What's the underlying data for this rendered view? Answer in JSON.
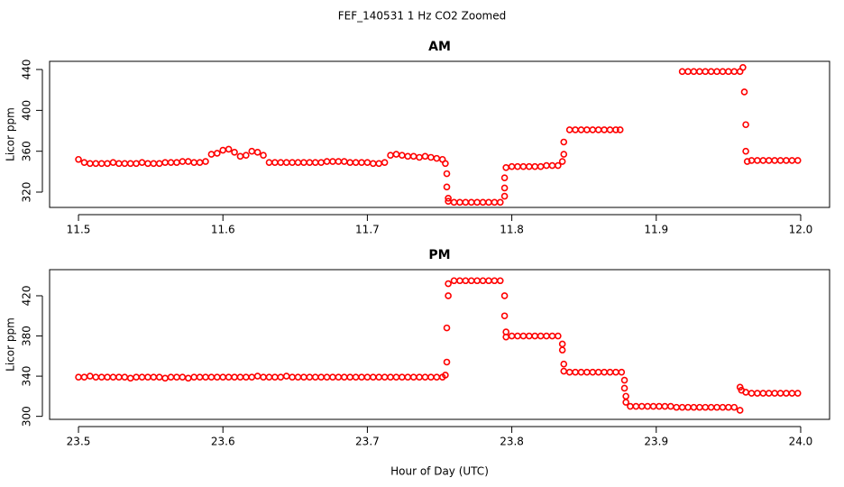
{
  "title": "FEF_140531  1 Hz CO2 Zoomed",
  "chart_data": [
    {
      "type": "scatter",
      "title": "AM",
      "ylabel": "Licor ppm",
      "color": "#ff0000",
      "xlim": [
        11.48,
        12.02
      ],
      "ylim": [
        305,
        448
      ],
      "xticks": [
        11.5,
        11.6,
        11.7,
        11.8,
        11.9,
        {
          "value": 12,
          "label": "12.0"
        }
      ],
      "yticks": [
        320,
        360,
        400,
        440
      ],
      "x": [
        11.5,
        11.504,
        11.508,
        11.512,
        11.516,
        11.52,
        11.524,
        11.528,
        11.532,
        11.536,
        11.54,
        11.544,
        11.548,
        11.552,
        11.556,
        11.56,
        11.564,
        11.568,
        11.572,
        11.576,
        11.58,
        11.584,
        11.588,
        11.592,
        11.596,
        11.6,
        11.604,
        11.608,
        11.612,
        11.616,
        11.62,
        11.624,
        11.628,
        11.632,
        11.636,
        11.64,
        11.644,
        11.648,
        11.652,
        11.656,
        11.66,
        11.664,
        11.668,
        11.672,
        11.676,
        11.68,
        11.684,
        11.688,
        11.692,
        11.696,
        11.7,
        11.704,
        11.708,
        11.712,
        11.716,
        11.72,
        11.724,
        11.728,
        11.732,
        11.736,
        11.74,
        11.744,
        11.748,
        11.752,
        11.754,
        11.755,
        11.755,
        11.756,
        11.756,
        11.76,
        11.764,
        11.768,
        11.772,
        11.776,
        11.78,
        11.784,
        11.788,
        11.792,
        11.795,
        11.795,
        11.795,
        11.796,
        11.8,
        11.804,
        11.808,
        11.812,
        11.816,
        11.82,
        11.824,
        11.828,
        11.832,
        11.835,
        11.836,
        11.836,
        11.84,
        11.844,
        11.848,
        11.852,
        11.856,
        11.86,
        11.864,
        11.868,
        11.872,
        11.875,
        11.918,
        11.922,
        11.926,
        11.93,
        11.934,
        11.938,
        11.942,
        11.946,
        11.95,
        11.954,
        11.958,
        11.96,
        11.961,
        11.962,
        11.962,
        11.963,
        11.966,
        11.97,
        11.974,
        11.978,
        11.982,
        11.986,
        11.99,
        11.994,
        11.998
      ],
      "values": [
        352,
        349,
        348,
        348,
        348,
        348,
        349,
        348,
        348,
        348,
        348,
        349,
        348,
        348,
        348,
        349,
        349,
        349,
        350,
        350,
        349,
        349,
        350,
        357,
        358,
        361,
        362,
        359,
        355,
        356,
        360,
        359,
        356,
        349,
        349,
        349,
        349,
        349,
        349,
        349,
        349,
        349,
        349,
        350,
        350,
        350,
        350,
        349,
        349,
        349,
        349,
        348,
        348,
        349,
        356,
        357,
        356,
        355,
        355,
        354,
        355,
        354,
        353,
        352,
        348,
        338,
        325,
        314,
        311,
        310,
        310,
        310,
        310,
        310,
        310,
        310,
        310,
        310,
        316,
        324,
        334,
        344,
        345,
        345,
        345,
        345,
        345,
        345,
        346,
        346,
        346,
        350,
        357,
        369,
        381,
        381,
        381,
        381,
        381,
        381,
        381,
        381,
        381,
        381,
        438,
        438,
        438,
        438,
        438,
        438,
        438,
        438,
        438,
        438,
        438,
        442,
        418,
        386,
        360,
        350,
        351,
        351,
        351,
        351,
        351,
        351,
        351,
        351,
        351
      ]
    },
    {
      "type": "scatter",
      "title": "PM",
      "ylabel": "Licor ppm",
      "xlabel": "Hour of Day (UTC)",
      "color": "#ff0000",
      "xlim": [
        23.48,
        24.02
      ],
      "ylim": [
        297,
        446
      ],
      "xticks": [
        23.5,
        23.6,
        23.7,
        23.8,
        23.9,
        {
          "value": 24,
          "label": "24.0"
        }
      ],
      "yticks": [
        300,
        340,
        380,
        420
      ],
      "x": [
        23.5,
        23.504,
        23.508,
        23.512,
        23.516,
        23.52,
        23.524,
        23.528,
        23.532,
        23.536,
        23.54,
        23.544,
        23.548,
        23.552,
        23.556,
        23.56,
        23.564,
        23.568,
        23.572,
        23.576,
        23.58,
        23.584,
        23.588,
        23.592,
        23.596,
        23.6,
        23.604,
        23.608,
        23.612,
        23.616,
        23.62,
        23.624,
        23.628,
        23.632,
        23.636,
        23.64,
        23.644,
        23.648,
        23.652,
        23.656,
        23.66,
        23.664,
        23.668,
        23.672,
        23.676,
        23.68,
        23.684,
        23.688,
        23.692,
        23.696,
        23.7,
        23.704,
        23.708,
        23.712,
        23.716,
        23.72,
        23.724,
        23.728,
        23.732,
        23.736,
        23.74,
        23.744,
        23.748,
        23.752,
        23.754,
        23.755,
        23.755,
        23.756,
        23.756,
        23.76,
        23.764,
        23.768,
        23.772,
        23.776,
        23.78,
        23.784,
        23.788,
        23.792,
        23.795,
        23.795,
        23.796,
        23.796,
        23.8,
        23.804,
        23.808,
        23.812,
        23.816,
        23.82,
        23.824,
        23.828,
        23.832,
        23.835,
        23.835,
        23.836,
        23.836,
        23.84,
        23.844,
        23.848,
        23.852,
        23.856,
        23.86,
        23.864,
        23.868,
        23.872,
        23.876,
        23.878,
        23.878,
        23.879,
        23.879,
        23.882,
        23.886,
        23.89,
        23.894,
        23.898,
        23.902,
        23.906,
        23.91,
        23.914,
        23.918,
        23.922,
        23.926,
        23.93,
        23.934,
        23.938,
        23.942,
        23.946,
        23.95,
        23.954,
        23.958,
        23.958,
        23.959,
        23.962,
        23.966,
        23.97,
        23.974,
        23.978,
        23.982,
        23.986,
        23.99,
        23.994,
        23.998
      ],
      "values": [
        339,
        339,
        340,
        339,
        339,
        339,
        339,
        339,
        339,
        338,
        339,
        339,
        339,
        339,
        339,
        338,
        339,
        339,
        339,
        338,
        339,
        339,
        339,
        339,
        339,
        339,
        339,
        339,
        339,
        339,
        339,
        340,
        339,
        339,
        339,
        339,
        340,
        339,
        339,
        339,
        339,
        339,
        339,
        339,
        339,
        339,
        339,
        339,
        339,
        339,
        339,
        339,
        339,
        339,
        339,
        339,
        339,
        339,
        339,
        339,
        339,
        339,
        339,
        339,
        341,
        354,
        388,
        420,
        432,
        435,
        435,
        435,
        435,
        435,
        435,
        435,
        435,
        435,
        420,
        400,
        384,
        379,
        380,
        380,
        380,
        380,
        380,
        380,
        380,
        380,
        380,
        372,
        366,
        352,
        345,
        344,
        344,
        344,
        344,
        344,
        344,
        344,
        344,
        344,
        344,
        336,
        328,
        320,
        314,
        310,
        310,
        310,
        310,
        310,
        310,
        310,
        310,
        309,
        309,
        309,
        309,
        309,
        309,
        309,
        309,
        309,
        309,
        309,
        306,
        329,
        326,
        324,
        323,
        323,
        323,
        323,
        323,
        323,
        323,
        323,
        323
      ]
    }
  ]
}
